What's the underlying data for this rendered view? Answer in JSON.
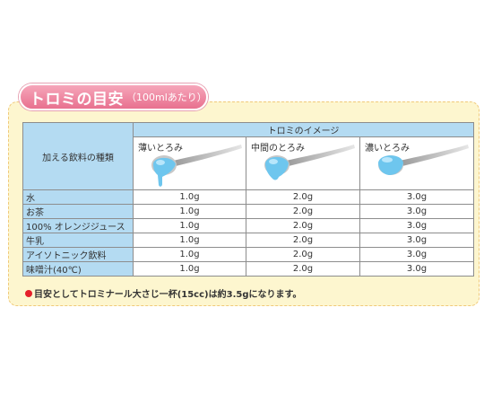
{
  "title": {
    "main": "トロミの目安",
    "sub": "（100mlあたり）"
  },
  "table": {
    "row_header": "加える飲料の種類",
    "group_header": "トロミのイメージ",
    "columns": [
      "薄いとろみ",
      "中間のとろみ",
      "濃いとろみ"
    ],
    "rows": [
      {
        "label": "水",
        "values": [
          "1.0g",
          "2.0g",
          "3.0g"
        ]
      },
      {
        "label": "お茶",
        "values": [
          "1.0g",
          "2.0g",
          "3.0g"
        ]
      },
      {
        "label": "100% オレンジジュース",
        "values": [
          "1.0g",
          "2.0g",
          "3.0g"
        ]
      },
      {
        "label": "牛乳",
        "values": [
          "1.0g",
          "2.0g",
          "3.0g"
        ]
      },
      {
        "label": "アイソトニック飲料",
        "values": [
          "1.0g",
          "2.0g",
          "3.0g"
        ]
      },
      {
        "label": "味噌汁(40℃)",
        "values": [
          "1.0g",
          "2.0g",
          "3.0g"
        ]
      }
    ]
  },
  "note": "目安としてトロミナール大さじ一杯(15cc)は約3.5gになります。",
  "colors": {
    "header_blue": "#b4dbf2",
    "panel": "#fdf6cf",
    "pill": "#e8718f",
    "liquid": "#6ec6ee",
    "bullet": "#e5202a"
  }
}
